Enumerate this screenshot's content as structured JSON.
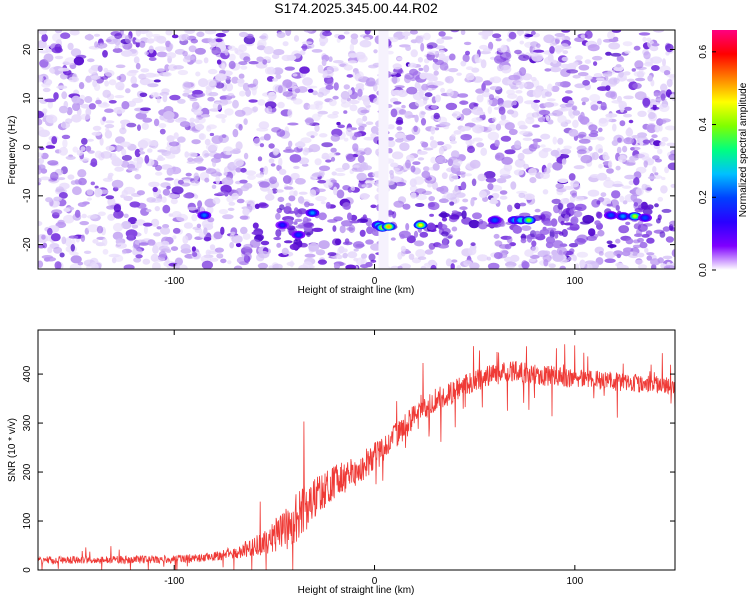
{
  "title": "S174.2025.345.00.44.R02",
  "chart_data": [
    {
      "type": "heatmap",
      "title": "S174.2025.345.00.44.R02",
      "xlabel": "Height of straight line (km)",
      "ylabel": "Frequency (Hz)",
      "xlim": [
        -168,
        150
      ],
      "ylim": [
        -25,
        24
      ],
      "x_ticks": [
        -100,
        0,
        100
      ],
      "y_ticks": [
        -20,
        -10,
        0,
        10,
        20
      ],
      "colorbar": {
        "label": "Normalized spectral amplitude",
        "range": [
          0.0,
          0.66
        ],
        "ticks": [
          0.0,
          0.2,
          0.4,
          0.6
        ],
        "colormap": [
          "#ffffff",
          "#7f00ff",
          "#2a00ff",
          "#0040ff",
          "#00c0ff",
          "#00ff80",
          "#80ff00",
          "#ffff00",
          "#ff8000",
          "#ff0000",
          "#ff0080"
        ]
      },
      "gap_x_km": [
        2,
        7
      ],
      "band": {
        "freq_center_hz": -16,
        "freq_halfwidth_hz": 3,
        "x_start_km": -60
      },
      "hotspots": [
        {
          "x": -85,
          "y": -14,
          "v": 0.22
        },
        {
          "x": -46,
          "y": -16,
          "v": 0.16
        },
        {
          "x": -38,
          "y": -18,
          "v": 0.18
        },
        {
          "x": -31,
          "y": -13.5,
          "v": 0.24
        },
        {
          "x": 2,
          "y": -16,
          "v": 0.3
        },
        {
          "x": 4,
          "y": -16.5,
          "v": 0.44
        },
        {
          "x": 7,
          "y": -16.3,
          "v": 0.5
        },
        {
          "x": 23,
          "y": -16,
          "v": 0.46
        },
        {
          "x": 60,
          "y": -15,
          "v": 0.2
        },
        {
          "x": 70,
          "y": -15,
          "v": 0.26
        },
        {
          "x": 73,
          "y": -15,
          "v": 0.3
        },
        {
          "x": 77,
          "y": -15,
          "v": 0.4
        },
        {
          "x": 118,
          "y": -14,
          "v": 0.2
        },
        {
          "x": 124,
          "y": -14.2,
          "v": 0.24
        },
        {
          "x": 130,
          "y": -14.2,
          "v": 0.42
        },
        {
          "x": 135,
          "y": -14.5,
          "v": 0.2
        }
      ]
    },
    {
      "type": "line",
      "xlabel": "Height of straight line (km)",
      "ylabel": "SNR (10 * v/v)",
      "xlim": [
        -168,
        150
      ],
      "ylim": [
        0,
        490
      ],
      "x_ticks": [
        -100,
        0,
        100
      ],
      "y_ticks": [
        0,
        100,
        200,
        300,
        400
      ],
      "color": "#ef3a36",
      "series": [
        {
          "name": "SNR",
          "trend_x": [
            -168,
            -100,
            -85,
            -70,
            -55,
            -40,
            -30,
            -20,
            -10,
            0,
            10,
            20,
            30,
            40,
            50,
            60,
            70,
            80,
            100,
            120,
            135,
            150
          ],
          "trend_y": [
            20,
            22,
            25,
            35,
            55,
            100,
            150,
            180,
            200,
            230,
            275,
            315,
            345,
            365,
            385,
            400,
            405,
            400,
            390,
            385,
            380,
            375
          ],
          "noise": [
            8,
            8,
            9,
            12,
            25,
            55,
            45,
            35,
            30,
            30,
            28,
            28,
            25,
            25,
            22,
            22,
            22,
            22,
            20,
            20,
            18,
            18
          ]
        }
      ]
    }
  ]
}
